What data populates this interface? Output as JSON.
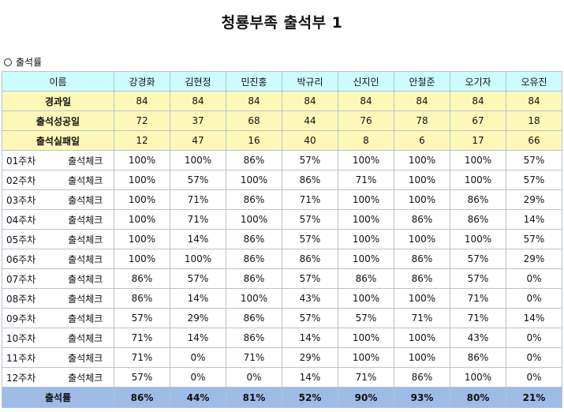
{
  "title": "청룡부족 출석부 1",
  "section_label": "출석률",
  "header": {
    "name_label": "이름",
    "members": [
      "강경화",
      "김현정",
      "민진홍",
      "박규리",
      "신지인",
      "안철준",
      "오기자",
      "오유진"
    ]
  },
  "info_rows": [
    {
      "label": "경과일",
      "values": [
        "84",
        "84",
        "84",
        "84",
        "84",
        "84",
        "84",
        "84"
      ]
    },
    {
      "label": "출석성공일",
      "values": [
        "72",
        "37",
        "68",
        "44",
        "76",
        "78",
        "67",
        "18"
      ]
    },
    {
      "label": "출석실패일",
      "values": [
        "12",
        "47",
        "16",
        "40",
        "8",
        "6",
        "17",
        "66"
      ]
    }
  ],
  "weeks": [
    {
      "week": "01주차",
      "check": "출석체크",
      "values": [
        "100%",
        "100%",
        "86%",
        "57%",
        "100%",
        "100%",
        "100%",
        "57%"
      ]
    },
    {
      "week": "02주차",
      "check": "출석체크",
      "values": [
        "100%",
        "57%",
        "100%",
        "86%",
        "71%",
        "100%",
        "100%",
        "57%"
      ]
    },
    {
      "week": "03주차",
      "check": "출석체크",
      "values": [
        "100%",
        "71%",
        "86%",
        "71%",
        "100%",
        "100%",
        "86%",
        "29%"
      ]
    },
    {
      "week": "04주차",
      "check": "출석체크",
      "values": [
        "100%",
        "71%",
        "100%",
        "57%",
        "100%",
        "86%",
        "86%",
        "14%"
      ]
    },
    {
      "week": "05주차",
      "check": "출석체크",
      "values": [
        "100%",
        "14%",
        "86%",
        "57%",
        "100%",
        "100%",
        "100%",
        "57%"
      ]
    },
    {
      "week": "06주차",
      "check": "출석체크",
      "values": [
        "100%",
        "100%",
        "86%",
        "86%",
        "100%",
        "86%",
        "57%",
        "29%"
      ]
    },
    {
      "week": "07주차",
      "check": "출석체크",
      "values": [
        "86%",
        "57%",
        "86%",
        "57%",
        "86%",
        "86%",
        "57%",
        "0%"
      ]
    },
    {
      "week": "08주차",
      "check": "출석체크",
      "values": [
        "86%",
        "14%",
        "100%",
        "43%",
        "100%",
        "100%",
        "71%",
        "0%"
      ]
    },
    {
      "week": "09주차",
      "check": "출석체크",
      "values": [
        "57%",
        "29%",
        "86%",
        "57%",
        "57%",
        "71%",
        "71%",
        "14%"
      ]
    },
    {
      "week": "10주차",
      "check": "출석체크",
      "values": [
        "71%",
        "14%",
        "86%",
        "14%",
        "100%",
        "100%",
        "43%",
        "0%"
      ]
    },
    {
      "week": "11주차",
      "check": "출석체크",
      "values": [
        "71%",
        "0%",
        "71%",
        "29%",
        "100%",
        "100%",
        "86%",
        "0%"
      ]
    },
    {
      "week": "12주차",
      "check": "출석체크",
      "values": [
        "57%",
        "0%",
        "0%",
        "14%",
        "71%",
        "86%",
        "100%",
        "0%"
      ]
    }
  ],
  "total": {
    "label": "출석률",
    "values": [
      "86%",
      "44%",
      "81%",
      "52%",
      "90%",
      "93%",
      "80%",
      "21%"
    ]
  }
}
